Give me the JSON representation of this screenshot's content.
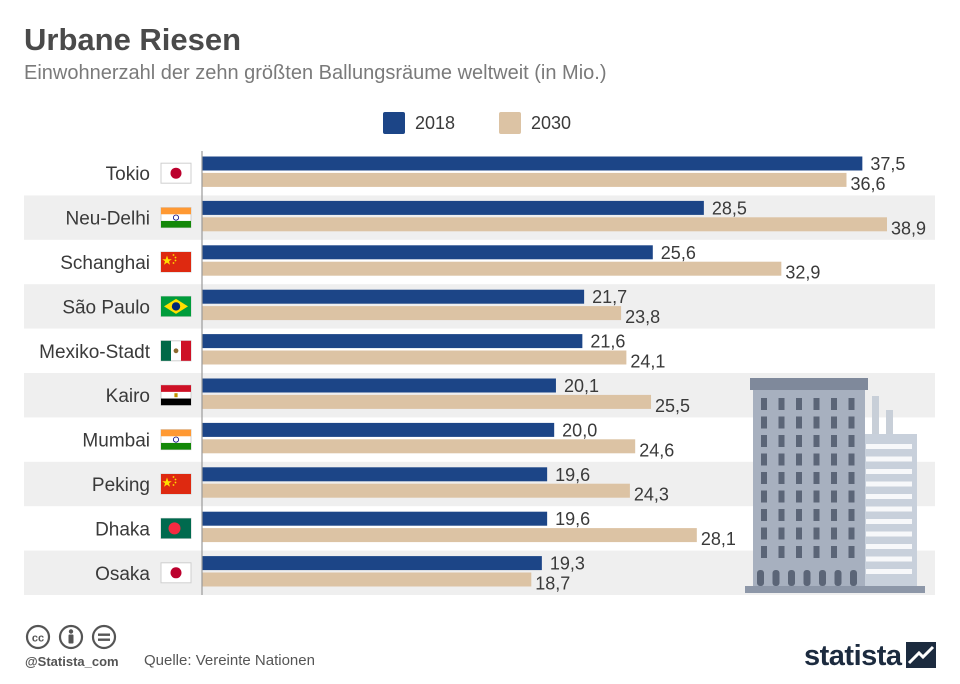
{
  "header": {
    "title": "Urbane Riesen",
    "subtitle": "Einwohnerzahl der zehn größten Ballungsräume weltweit (in Mio.)"
  },
  "legend": [
    {
      "label": "2018",
      "color": "#1c4587"
    },
    {
      "label": "2030",
      "color": "#dcc3a4"
    }
  ],
  "chart_data": {
    "type": "bar",
    "orientation": "horizontal",
    "title": "Urbane Riesen",
    "subtitle": "Einwohnerzahl der zehn größten Ballungsräume weltweit (in Mio.)",
    "xlabel": "",
    "ylabel": "",
    "xlim": [
      0,
      38.9
    ],
    "categories": [
      "Tokio",
      "Neu-Delhi",
      "Schanghai",
      "São Paulo",
      "Mexiko-Stadt",
      "Kairo",
      "Mumbai",
      "Peking",
      "Dhaka",
      "Osaka"
    ],
    "flags": [
      "japan",
      "india",
      "china",
      "brazil",
      "mexico",
      "egypt",
      "india",
      "china",
      "bangladesh",
      "japan"
    ],
    "series": [
      {
        "name": "2018",
        "color": "#1c4587",
        "values": [
          37.5,
          28.5,
          25.6,
          21.7,
          21.6,
          20.1,
          20.0,
          19.6,
          19.6,
          19.3
        ],
        "labels": [
          "37,5",
          "28,5",
          "25,6",
          "21,7",
          "21,6",
          "20,1",
          "20,0",
          "19,6",
          "19,6",
          "19,3"
        ]
      },
      {
        "name": "2030",
        "color": "#dcc3a4",
        "values": [
          36.6,
          38.9,
          32.9,
          23.8,
          24.1,
          25.5,
          24.6,
          24.3,
          28.1,
          18.7
        ],
        "labels": [
          "36,6",
          "38,9",
          "32,9",
          "23,8",
          "24,1",
          "25,5",
          "24,6",
          "24,3",
          "28,1",
          "18,7"
        ]
      }
    ],
    "grid": false,
    "legend_position": "top-center"
  },
  "footer": {
    "cc_icons": [
      "cc-icon",
      "attribution-icon",
      "no-derivatives-icon"
    ],
    "handle": "@Statista_com",
    "source": "Quelle: Vereinte Nationen",
    "brand": "statista"
  }
}
